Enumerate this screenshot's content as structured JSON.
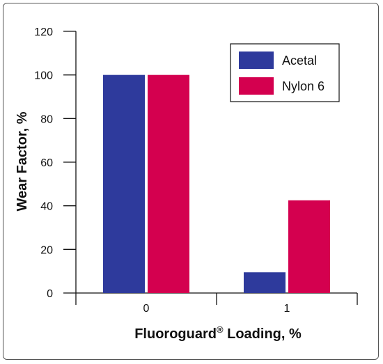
{
  "chart_data": {
    "type": "bar",
    "categories": [
      "0",
      "1"
    ],
    "series": [
      {
        "name": "Acetal",
        "color": "#2e3a9c",
        "values": [
          100,
          9.5
        ]
      },
      {
        "name": "Nylon 6",
        "color": "#d4004f",
        "values": [
          100,
          42.5
        ]
      }
    ],
    "ylim": [
      0,
      120
    ],
    "yticks": [
      0,
      20,
      40,
      60,
      80,
      100,
      120
    ],
    "ylabel": "Wear Factor, %",
    "xlabel_main": "Fluoroguard",
    "xlabel_sup": "®",
    "xlabel_rest": " Loading, %",
    "legend_position": "top-right",
    "grid": false
  }
}
